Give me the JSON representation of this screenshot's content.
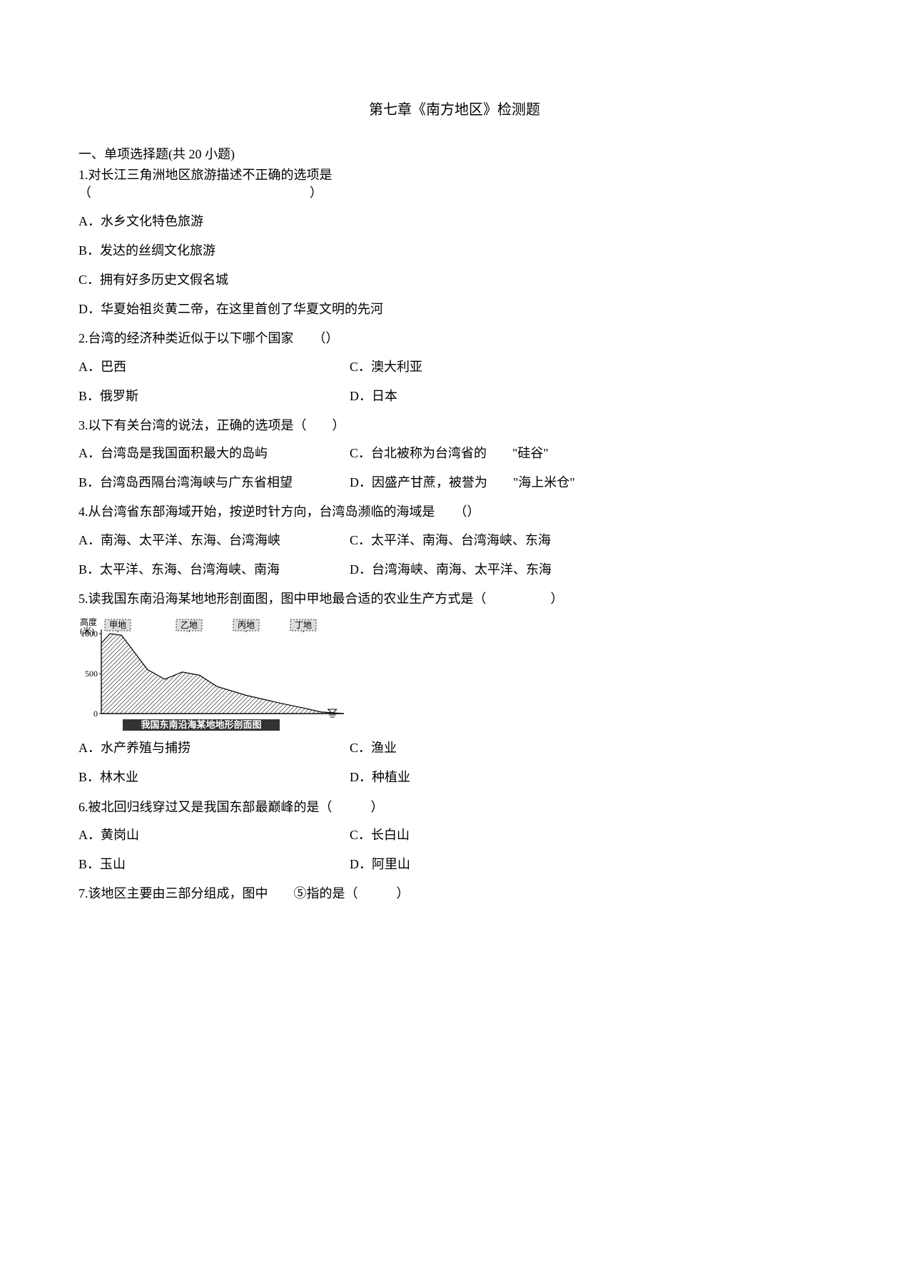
{
  "title": "第七章《南方地区》检测题",
  "section1": "一、单项选择题(共 20 小题)",
  "q1": {
    "stem": "1.对长江三角洲地区旅游描述不正确的选项是（　　　　　　　　　　　　　　　　　）",
    "A": "A．水乡文化特色旅游",
    "B": "B．发达的丝绸文化旅游",
    "C": "C．拥有好多历史文假名城",
    "D": "D．华夏始祖炎黄二帝，在这里首创了华夏文明的先河"
  },
  "q2": {
    "stem": "2.台湾的经济种类近似于以下哪个国家　　（）",
    "A": "A．巴西",
    "C": "C．澳大利亚",
    "B": "B．俄罗斯",
    "D": "D．日本"
  },
  "q3": {
    "stem": "3.以下有关台湾的说法，正确的选项是（　　）",
    "A": "A．台湾岛是我国面积最大的岛屿",
    "C": "C．台北被称为台湾省的　　\"硅谷\"",
    "B": "B．台湾岛西隔台湾海峡与广东省相望",
    "D": "D．因盛产甘蔗，被誉为　　\"海上米仓\""
  },
  "q4": {
    "stem": "4.从台湾省东部海域开始，按逆时针方向，台湾岛濒临的海域是　　（）",
    "A": "A．南海、太平洋、东海、台湾海峡",
    "C": "C．太平洋、南海、台湾海峡、东海",
    "B": "B．太平洋、东海、台湾海峡、南海",
    "D": "D．台湾海峡、南海、太平洋、东海"
  },
  "q5": {
    "stem": "5.读我国东南沿海某地地形剖面图，图中甲地最合适的农业生产方式是（　　　　　）",
    "A": "A．水产养殖与捕捞",
    "C": "C．渔业",
    "B": "B．林木业",
    "D": "D．种植业",
    "chart": {
      "type": "cross-section",
      "y_axis_label": "高度\n(米)",
      "y_ticks": [
        0,
        500,
        1000
      ],
      "top_labels": [
        "甲地",
        "乙地",
        "丙地",
        "丁地"
      ],
      "caption": "我国东南沿海某地地形剖面图",
      "profile_points": [
        [
          0,
          880
        ],
        [
          15,
          1000
        ],
        [
          35,
          980
        ],
        [
          55,
          790
        ],
        [
          80,
          550
        ],
        [
          110,
          430
        ],
        [
          140,
          520
        ],
        [
          170,
          480
        ],
        [
          200,
          340
        ],
        [
          250,
          230
        ],
        [
          310,
          130
        ],
        [
          350,
          70
        ],
        [
          380,
          20
        ],
        [
          420,
          0
        ]
      ],
      "colors": {
        "background": "#ffffff",
        "line": "#000000",
        "hatch": "#555555",
        "text": "#000000",
        "label_bg": "#dddddd"
      },
      "y_max": 1000,
      "chart_width_units": 420,
      "font_size_labels": 12,
      "font_size_caption": 13
    }
  },
  "q6": {
    "stem": "6.被北回归线穿过又是我国东部最巅峰的是（　　　）",
    "A": "A．黄岗山",
    "C": "C．长白山",
    "B": "B．玉山",
    "D": "D．阿里山"
  },
  "q7": {
    "stem": "7.该地区主要由三部分组成，图中　　⑤指的是（　　　）"
  }
}
